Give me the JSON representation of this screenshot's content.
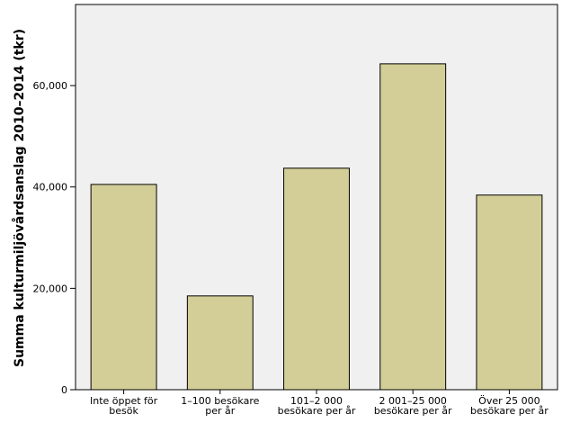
{
  "chart_data": {
    "type": "bar",
    "categories": [
      [
        "Inte öppet för",
        "besök"
      ],
      [
        "1–100 besökare",
        "per år"
      ],
      [
        "101–2 000",
        "besökare per år"
      ],
      [
        "2 001–25 000",
        "besökare per år"
      ],
      [
        "Över 25 000",
        "besökare per år"
      ]
    ],
    "values": [
      40500,
      18500,
      43700,
      64300,
      38400
    ],
    "title": "",
    "xlabel": "",
    "ylabel": "Summa kulturmiljövårdsanslag 2010–2014 (tkr)",
    "ylim": [
      0,
      76000
    ],
    "yticks": [
      0,
      20000,
      40000,
      60000
    ],
    "ytick_labels": [
      "0",
      "20,000",
      "40,000",
      "60,000"
    ],
    "grid": false,
    "colors": {
      "plot_background": "#f0f0f0",
      "bar_fill": "#d3ce97",
      "bar_stroke": "#000000"
    }
  }
}
